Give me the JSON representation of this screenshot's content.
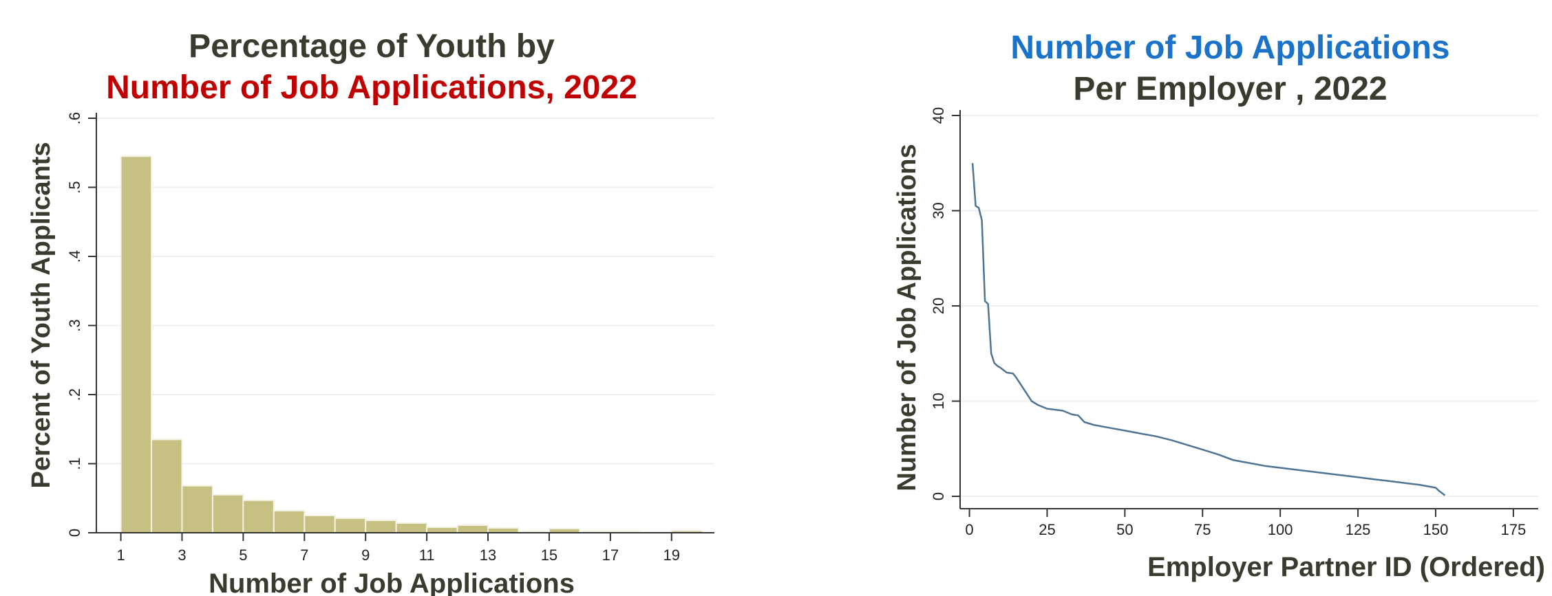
{
  "colors": {
    "bar_fill": "#c7c083",
    "bar_stroke": "#f4f2e4",
    "line": "#4e7393",
    "title_dark": "#3a3a2e",
    "title_red": "#c00000",
    "title_blue": "#1a73c8",
    "grid": "#eef1f4",
    "axis": "#333333"
  },
  "chart_data": [
    {
      "type": "bar",
      "title_line1": "Percentage of Youth by",
      "title_line2": "Number of Job Applications, 2022",
      "xlabel": "Number of Job Applications",
      "ylabel": "Percent of Youth Applicants",
      "x_ticks": [
        "1",
        "3",
        "5",
        "7",
        "9",
        "11",
        "13",
        "15",
        "17",
        "19"
      ],
      "y_ticks": [
        "0",
        ".1",
        ".2",
        ".3",
        ".4",
        ".5",
        ".6"
      ],
      "xlim": [
        0.2,
        20.4
      ],
      "ylim": [
        0,
        0.6
      ],
      "categories": [
        "1",
        "2",
        "3",
        "4",
        "5",
        "6",
        "7",
        "8",
        "9",
        "10",
        "11",
        "12",
        "13",
        "14",
        "15",
        "16",
        "17",
        "18",
        "19"
      ],
      "values": [
        0.545,
        0.135,
        0.068,
        0.055,
        0.047,
        0.032,
        0.025,
        0.021,
        0.018,
        0.014,
        0.008,
        0.011,
        0.007,
        0.002,
        0.006,
        0.002,
        0.002,
        0.001,
        0.003
      ],
      "grid": true
    },
    {
      "type": "line",
      "title_line1": "Number of Job Applications",
      "title_line2": "Per Employer , 2022",
      "xlabel": "Employer Partner ID (Ordered)",
      "ylabel": "Number of Job Applications",
      "x_ticks": [
        "0",
        "25",
        "50",
        "75",
        "100",
        "125",
        "150",
        "175"
      ],
      "y_ticks": [
        "0",
        "10",
        "20",
        "30",
        "40"
      ],
      "xlim": [
        -3,
        183
      ],
      "ylim": [
        0,
        40
      ],
      "x": [
        1,
        2,
        3,
        4,
        5,
        6,
        7,
        8,
        9,
        10,
        12,
        14,
        15,
        17,
        18,
        19,
        20,
        22,
        25,
        30,
        33,
        35,
        37,
        40,
        45,
        50,
        55,
        60,
        65,
        70,
        75,
        80,
        85,
        90,
        95,
        100,
        105,
        110,
        115,
        120,
        125,
        130,
        135,
        140,
        145,
        150,
        151,
        153
      ],
      "y": [
        35,
        30.5,
        30.3,
        29,
        20.5,
        20.2,
        15,
        14,
        13.7,
        13.5,
        13,
        12.9,
        12.5,
        11.5,
        11,
        10.5,
        10,
        9.6,
        9.2,
        9,
        8.6,
        8.5,
        7.8,
        7.5,
        7.2,
        6.9,
        6.6,
        6.3,
        5.9,
        5.4,
        4.9,
        4.4,
        3.8,
        3.5,
        3.2,
        3.0,
        2.8,
        2.6,
        2.4,
        2.2,
        2.0,
        1.8,
        1.6,
        1.4,
        1.2,
        0.9,
        0.6,
        0.1
      ],
      "grid": true
    }
  ]
}
